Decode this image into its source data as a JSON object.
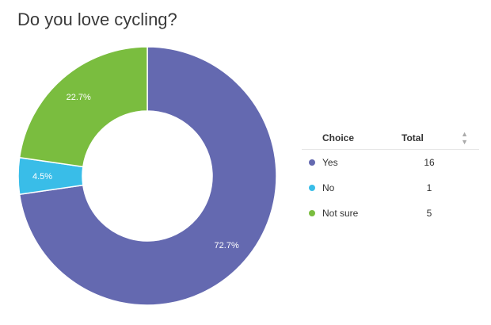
{
  "title": "Do you love cycling?",
  "table": {
    "headers": {
      "choice": "Choice",
      "total": "Total"
    },
    "sort_icon": "sort-arrows-icon",
    "rows": [
      {
        "choice": "Yes",
        "total": "16",
        "color": "#6469b0"
      },
      {
        "choice": "No",
        "total": "1",
        "color": "#39bde8"
      },
      {
        "choice": "Not sure",
        "total": "5",
        "color": "#7abd3f"
      }
    ]
  },
  "chart_data": {
    "type": "pie",
    "title": "Do you love cycling?",
    "donut": true,
    "categories": [
      "Yes",
      "No",
      "Not sure"
    ],
    "values": [
      16,
      1,
      5
    ],
    "percent_labels": [
      "72.7%",
      "4.5%",
      "22.7%"
    ],
    "colors": [
      "#6469b0",
      "#39bde8",
      "#7abd3f"
    ]
  }
}
